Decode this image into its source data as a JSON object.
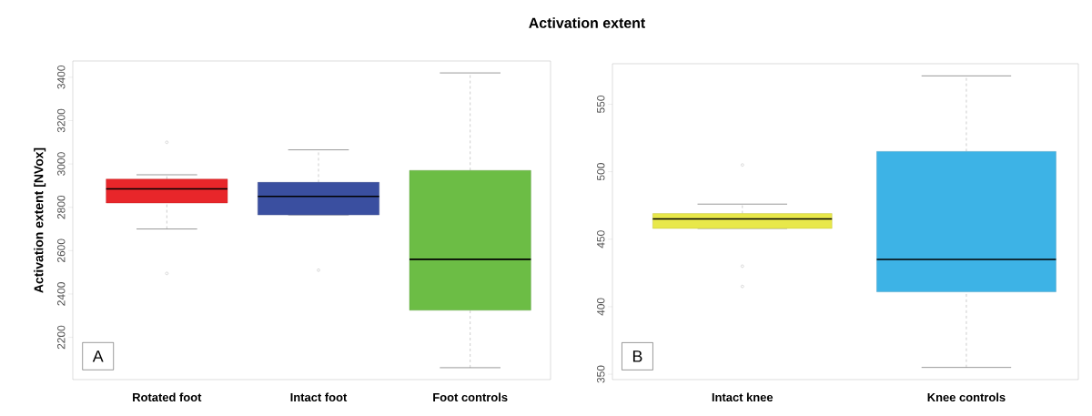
{
  "chart_data": [
    {
      "type": "box",
      "title": "Activation extent",
      "ylabel": "Activation extent [NVox]",
      "categories": [
        "Rotated foot",
        "Intact foot",
        "Foot controls"
      ],
      "colors": [
        "#e8262a",
        "#3a4fa0",
        "#6cbd45"
      ],
      "boxes": [
        {
          "low": 2700,
          "q1": 2820,
          "median": 2885,
          "q3": 2930,
          "high": 2950,
          "outliers": [
            3100,
            2495
          ]
        },
        {
          "low": 2765,
          "q1": 2765,
          "median": 2850,
          "q3": 2915,
          "high": 3065,
          "outliers": [
            2510
          ]
        },
        {
          "low": 2060,
          "q1": 2325,
          "median": 2560,
          "q3": 2970,
          "high": 3420
        }
      ],
      "ylim": [
        2005,
        3475
      ],
      "yticks": [
        2200,
        2400,
        2600,
        2800,
        3000,
        3200,
        3400
      ],
      "annotations": [
        "A"
      ]
    },
    {
      "type": "box",
      "categories": [
        "Intact knee",
        "Knee controls"
      ],
      "colors": [
        "#e8e84a",
        "#3db3e6"
      ],
      "boxes": [
        {
          "low": 458,
          "q1": 458,
          "median": 465,
          "q3": 469,
          "high": 476,
          "outliers": [
            505,
            430,
            415
          ]
        },
        {
          "low": 355,
          "q1": 411,
          "median": 435,
          "q3": 515,
          "high": 571
        }
      ],
      "ylim": [
        346,
        580
      ],
      "yticks": [
        350,
        400,
        450,
        500,
        550
      ],
      "annotations": [
        "B"
      ]
    }
  ]
}
